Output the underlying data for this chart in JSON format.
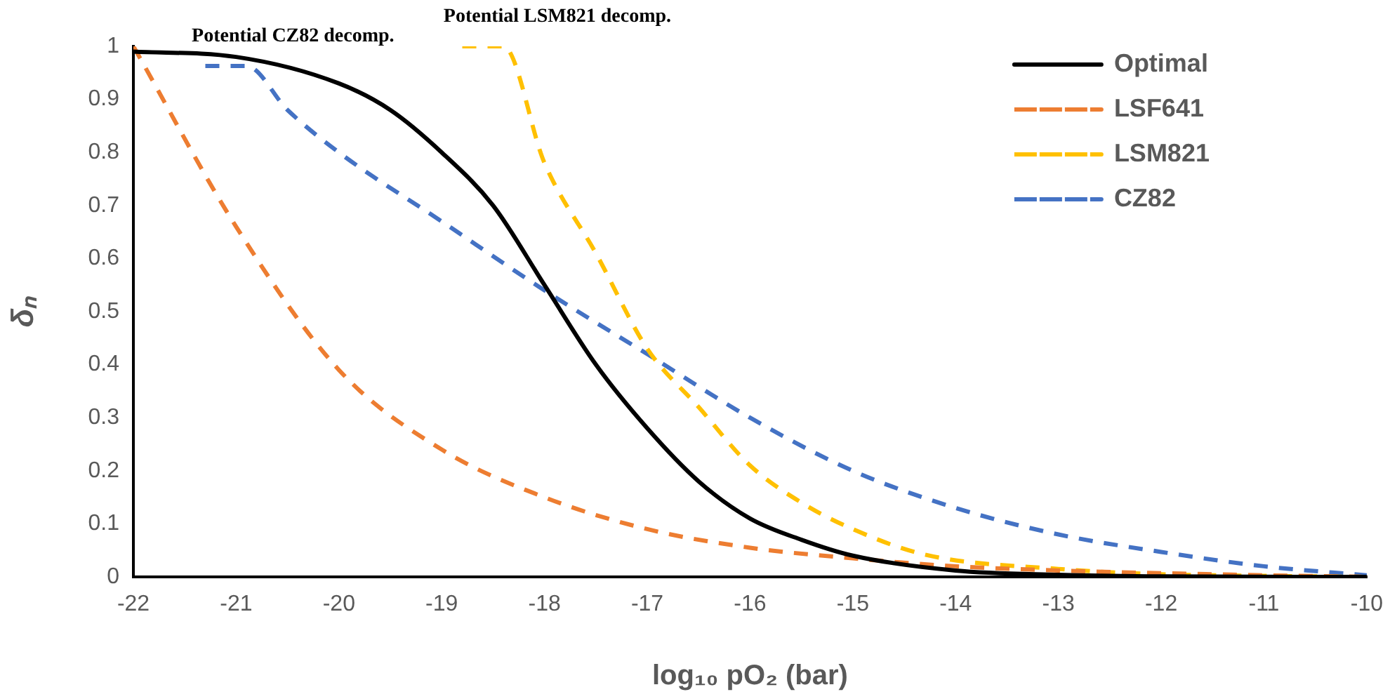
{
  "chart_data": {
    "type": "line",
    "xlabel": "log₁₀ pO₂ (bar)",
    "ylabel": "δₙ",
    "xlim": [
      -22,
      -10
    ],
    "xticks": [
      -22,
      -21,
      -20,
      -19,
      -18,
      -17,
      -16,
      -15,
      -14,
      -13,
      -12,
      -11,
      -10
    ],
    "ylim": [
      0,
      1
    ],
    "yticks": [
      0,
      0.1,
      0.2,
      0.3,
      0.4,
      0.5,
      0.6,
      0.7,
      0.8,
      0.9,
      1
    ],
    "grid": false,
    "legend": "top right",
    "marker": "none",
    "annotations": [
      {
        "text": "Potential CZ82 decomp.",
        "x": -21.05,
        "y": 0.963
      },
      {
        "text": "Potential LSM821 decomp.",
        "x": -18.6,
        "y": 1.0
      }
    ],
    "series": [
      {
        "name": "Optimal",
        "color": "#000000",
        "line_style": "solid",
        "x": [
          -22,
          -21,
          -20,
          -19.5,
          -19,
          -18.5,
          -18,
          -17.5,
          -17,
          -16.5,
          -16,
          -15.5,
          -15,
          -14,
          -13,
          -12,
          -10
        ],
        "values": [
          0.99,
          0.98,
          0.93,
          0.88,
          0.8,
          0.7,
          0.55,
          0.4,
          0.28,
          0.18,
          0.11,
          0.07,
          0.04,
          0.012,
          0.004,
          0.001,
          0
        ]
      },
      {
        "name": "LSF641",
        "color": "#ed7d31",
        "line_style": "dashed",
        "x": [
          -22,
          -21,
          -20,
          -19,
          -18,
          -17,
          -16,
          -15,
          -14,
          -13,
          -12,
          -11,
          -10
        ],
        "values": [
          1,
          0.66,
          0.39,
          0.24,
          0.15,
          0.09,
          0.055,
          0.035,
          0.02,
          0.012,
          0.007,
          0.003,
          0
        ]
      },
      {
        "name": "LSM821",
        "color": "#ffc000",
        "line_style": "dashed",
        "x": [
          -18.8,
          -18.4,
          -18,
          -17.5,
          -17,
          -16.5,
          -16,
          -15.5,
          -15,
          -14.3,
          -13,
          -12,
          -11,
          -10
        ],
        "values": [
          1,
          1,
          0.78,
          0.61,
          0.43,
          0.32,
          0.21,
          0.14,
          0.09,
          0.042,
          0.015,
          0.005,
          0.002,
          0
        ]
      },
      {
        "name": "CZ82",
        "color": "#4472c4",
        "line_style": "dashed",
        "x": [
          -21.3,
          -20.9,
          -20.5,
          -20,
          -19,
          -18,
          -17,
          -16,
          -15,
          -14,
          -13,
          -12,
          -11,
          -10
        ],
        "values": [
          0.963,
          0.963,
          0.88,
          0.8,
          0.67,
          0.54,
          0.42,
          0.3,
          0.2,
          0.13,
          0.08,
          0.047,
          0.02,
          0.003
        ]
      }
    ]
  }
}
